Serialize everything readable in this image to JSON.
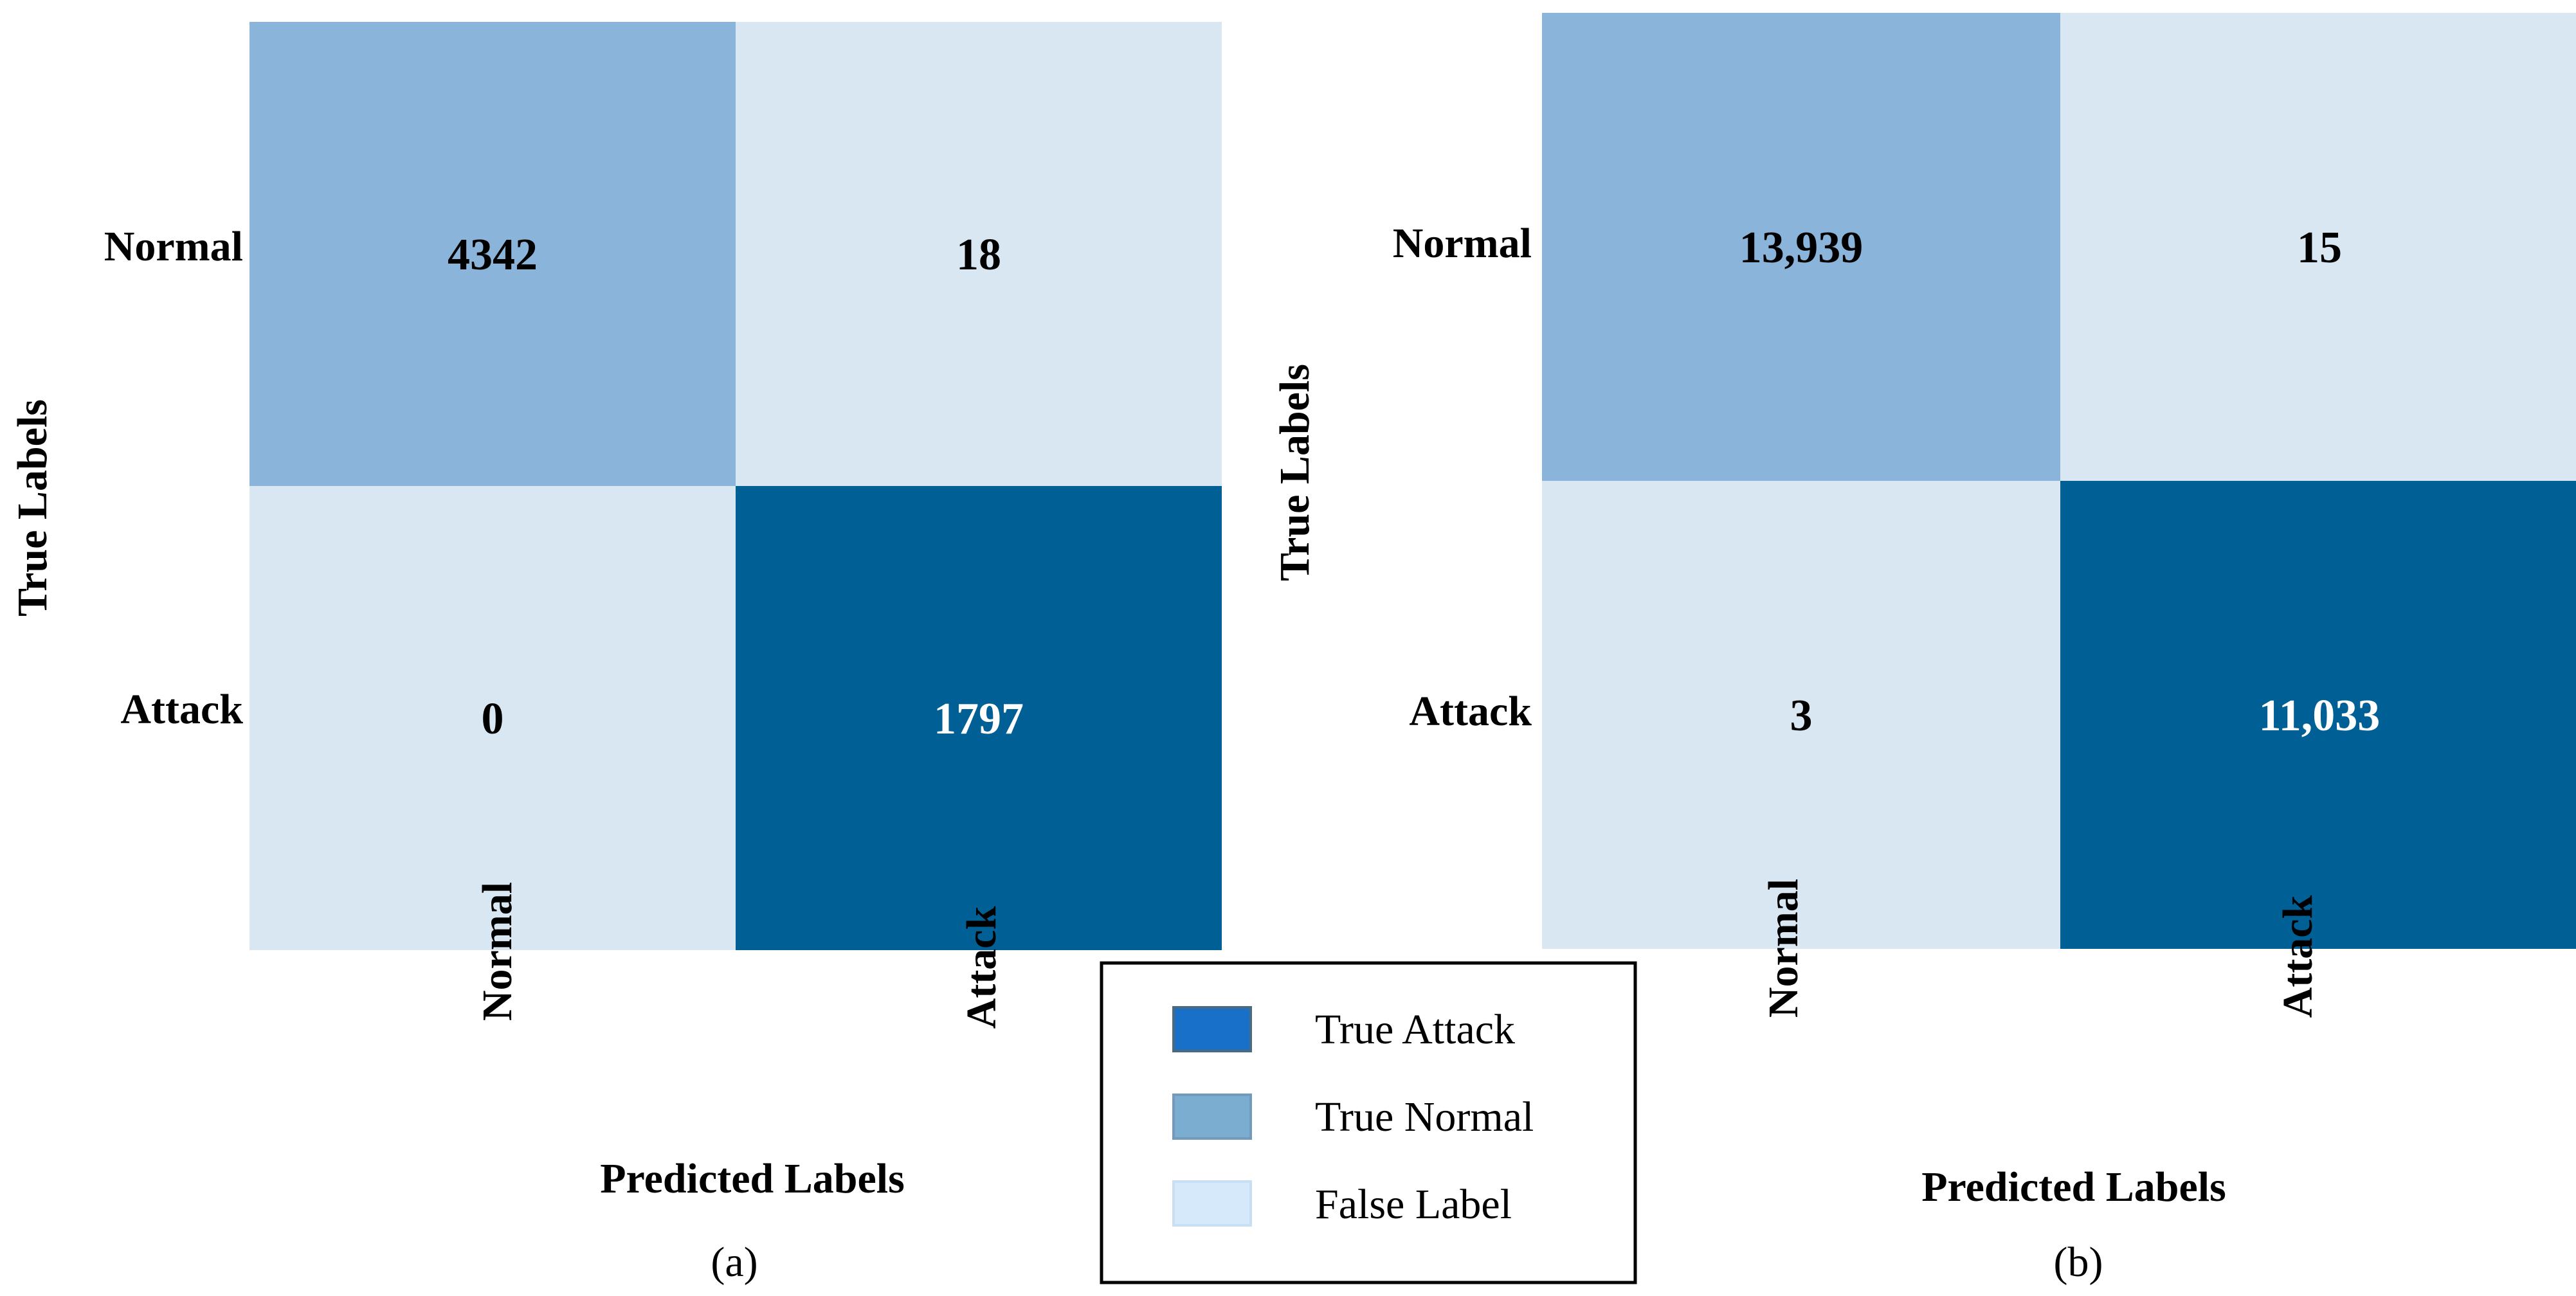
{
  "chart_data": [
    {
      "type": "heatmap",
      "caption": "(a)",
      "xlabel": "Predicted Labels",
      "ylabel": "True Labels",
      "row_labels": [
        "Normal",
        "Attack"
      ],
      "col_labels": [
        "Normal",
        "Attack"
      ],
      "matrix": [
        [
          4342,
          18
        ],
        [
          0,
          1797
        ]
      ],
      "display": [
        [
          "4342",
          "18"
        ],
        [
          "0",
          "1797"
        ]
      ],
      "cell_classes": [
        [
          "true-normal",
          "false-label"
        ],
        [
          "false-label",
          "true-attack"
        ]
      ]
    },
    {
      "type": "heatmap",
      "caption": "(b)",
      "xlabel": "Predicted Labels",
      "ylabel": "True Labels",
      "row_labels": [
        "Normal",
        "Attack"
      ],
      "col_labels": [
        "Normal",
        "Attack"
      ],
      "matrix": [
        [
          13939,
          15
        ],
        [
          3,
          11033
        ]
      ],
      "display": [
        [
          "13,939",
          "15"
        ],
        [
          "3",
          "11,033"
        ]
      ],
      "cell_classes": [
        [
          "true-normal",
          "false-label"
        ],
        [
          "false-label",
          "true-attack"
        ]
      ]
    }
  ],
  "colors": {
    "true-attack": "#005f94",
    "true-normal": "#8ab4d9",
    "false-label": "#d9e7f3",
    "legend-true-attack": "#1870c8",
    "legend-true-normal": "#7aadd0",
    "legend-false-label": "#d6e9fb",
    "text-dark": "#000000",
    "text-light": "#ffffff"
  },
  "legend": {
    "items": [
      {
        "key": "true-attack",
        "label": "True Attack"
      },
      {
        "key": "true-normal",
        "label": "True Normal"
      },
      {
        "key": "false-label",
        "label": "False Label"
      }
    ]
  }
}
